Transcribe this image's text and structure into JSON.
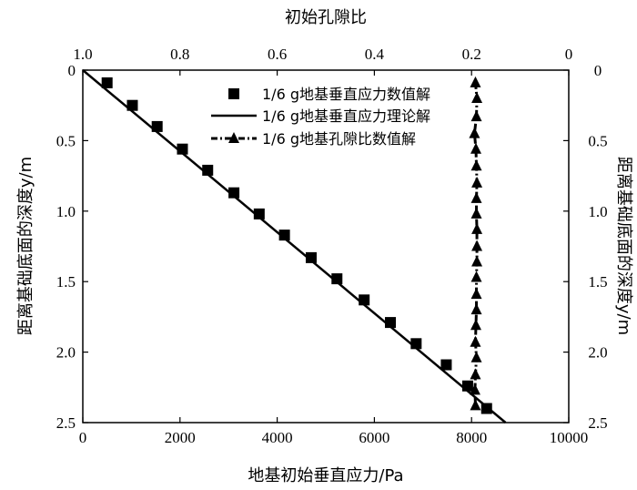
{
  "chart_data": {
    "type": "scatter",
    "title": "",
    "xlabel": "地基初始垂直应力/Pa",
    "x2label": "初始孔隙比",
    "ylabel": "距离基础底面的深度y/m",
    "y2label": "距离基础底面的深度y/m",
    "xlim": [
      0,
      10000
    ],
    "x2lim": [
      1.0,
      0.0
    ],
    "ylim": [
      0,
      2.5
    ],
    "y_inverted": true,
    "grid": false,
    "legend_placement": "top-right",
    "xticks": [
      "0",
      "2000",
      "4000",
      "6000",
      "8000",
      "10000"
    ],
    "x2ticks": [
      "1.0",
      "0.8",
      "0.6",
      "0.4",
      "0.2",
      "0"
    ],
    "yticks": [
      "0",
      "0.5",
      "1.0",
      "1.5",
      "2.0",
      "2.5"
    ],
    "series": [
      {
        "name": "1/6 g地基垂直应力数值解",
        "style": "square-markers",
        "axis": "bottom",
        "color": "#000000",
        "x": [
          500,
          1020,
          1530,
          2050,
          2570,
          3110,
          3630,
          4150,
          4700,
          5230,
          5790,
          6330,
          6860,
          7480,
          7920,
          8310
        ],
        "y": [
          0.09,
          0.25,
          0.4,
          0.56,
          0.71,
          0.87,
          1.02,
          1.17,
          1.33,
          1.48,
          1.63,
          1.79,
          1.94,
          2.09,
          2.24,
          2.4
        ]
      },
      {
        "name": "1/6 g地基垂直应力理论解",
        "style": "solid-line",
        "axis": "bottom",
        "color": "#000000",
        "x": [
          0,
          8700
        ],
        "y": [
          0,
          2.5
        ]
      },
      {
        "name": "1/6 g地基孔隙比数值解",
        "style": "dash-dot-line-triangle-markers",
        "axis": "top",
        "color": "#000000",
        "x": [
          0.192,
          0.189,
          0.19,
          0.194,
          0.191,
          0.19,
          0.189,
          0.19,
          0.19,
          0.189,
          0.189,
          0.189,
          0.19,
          0.19,
          0.19,
          0.191,
          0.192,
          0.19,
          0.192,
          0.193,
          0.192
        ],
        "y": [
          0.09,
          0.2,
          0.33,
          0.45,
          0.56,
          0.68,
          0.8,
          0.91,
          1.02,
          1.13,
          1.25,
          1.36,
          1.47,
          1.59,
          1.7,
          1.81,
          1.93,
          2.04,
          2.16,
          2.27,
          2.38
        ]
      }
    ]
  }
}
